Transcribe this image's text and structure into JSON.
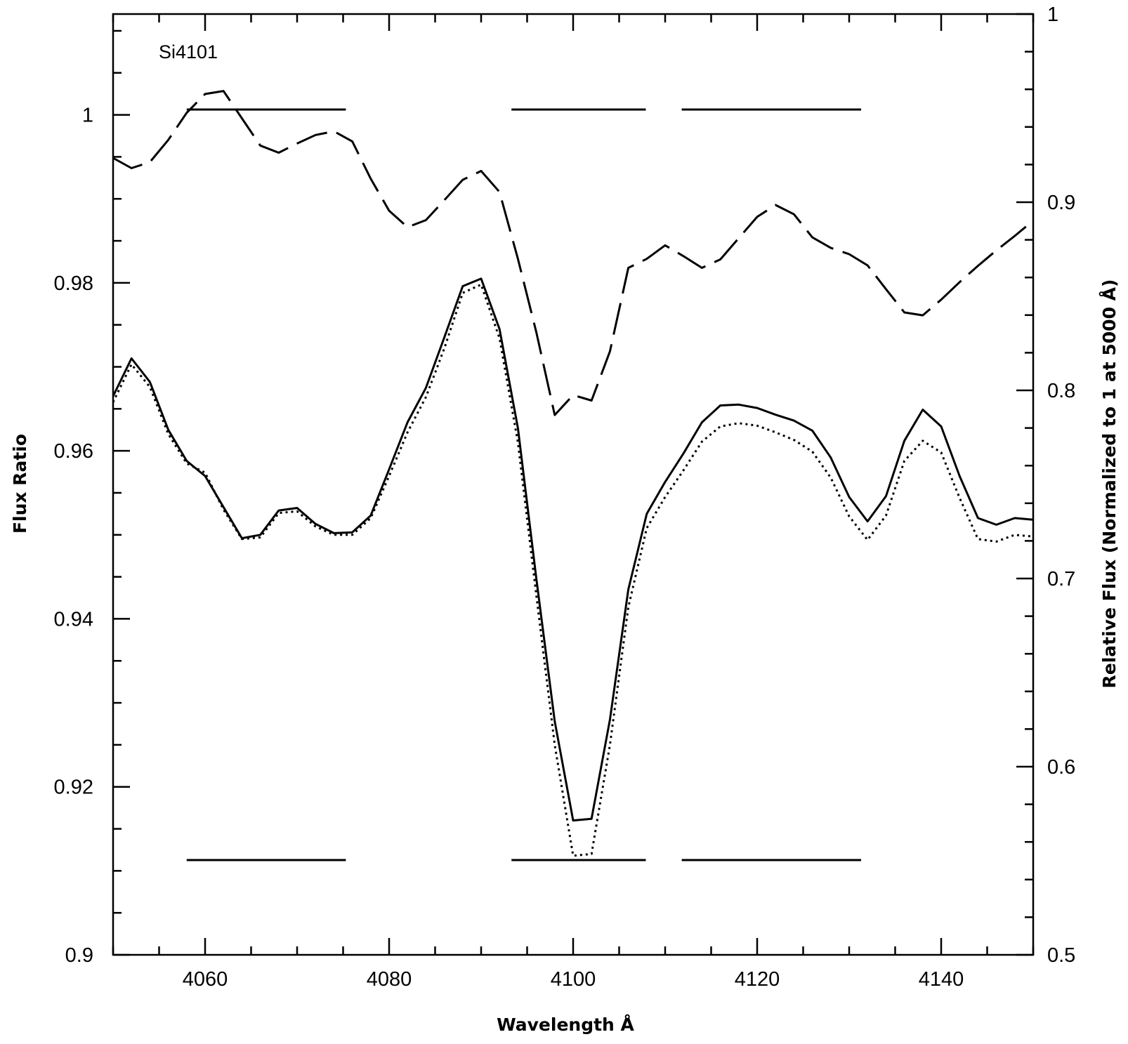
{
  "chart_data": {
    "type": "line",
    "annotation": "Si4101",
    "xlabel": "Wavelength Å",
    "ylabel_left": "Flux Ratio",
    "ylabel_right": "Relative Flux (Normalized to 1 at 5000 Å)",
    "xlim": [
      4050,
      4150
    ],
    "ylim_left": [
      0.9,
      1.012
    ],
    "ylim_right": [
      0.5,
      1.0
    ],
    "x_ticks": [
      "4060",
      "4080",
      "4100",
      "4120",
      "4140"
    ],
    "y_left_ticks": [
      "0.9",
      "0.92",
      "0.94",
      "0.96",
      "0.98",
      "1"
    ],
    "y_right_ticks": [
      "0.5",
      "0.6",
      "0.7",
      "0.8",
      "0.9",
      "1"
    ],
    "continuum_bands": [
      [
        4058,
        4075.3
      ],
      [
        4093.3,
        4107.9
      ],
      [
        4111.8,
        4131.3
      ]
    ],
    "series": [
      {
        "style": "solid",
        "axis": "left",
        "x": [
          4050,
          4052,
          4054,
          4056,
          4058,
          4060,
          4062,
          4064,
          4066,
          4068,
          4070,
          4072,
          4074,
          4076,
          4078,
          4080,
          4082,
          4084,
          4086,
          4088,
          4090,
          4092,
          4094,
          4096,
          4098,
          4100,
          4102,
          4104,
          4106,
          4108,
          4110,
          4112,
          4114,
          4116,
          4118,
          4120,
          4122,
          4124,
          4126,
          4128,
          4130,
          4132,
          4134,
          4136,
          4138,
          4140,
          4142,
          4144,
          4146,
          4148,
          4150
        ],
        "y": [
          0.9665,
          0.971,
          0.9682,
          0.9625,
          0.9588,
          0.957,
          0.9533,
          0.9496,
          0.95,
          0.9529,
          0.9532,
          0.9513,
          0.9502,
          0.9503,
          0.9523,
          0.9578,
          0.9634,
          0.9675,
          0.9735,
          0.9796,
          0.9805,
          0.9745,
          0.9627,
          0.9448,
          0.9278,
          0.916,
          0.9162,
          0.928,
          0.9435,
          0.9525,
          0.9563,
          0.9597,
          0.9634,
          0.9654,
          0.9655,
          0.9651,
          0.9643,
          0.9636,
          0.9624,
          0.9592,
          0.9545,
          0.9516,
          0.9546,
          0.9612,
          0.9649,
          0.9629,
          0.957,
          0.952,
          0.9512,
          0.952,
          0.9518
        ]
      },
      {
        "style": "dotted",
        "axis": "left",
        "x": [
          4050,
          4052,
          4054,
          4056,
          4058,
          4060,
          4062,
          4064,
          4066,
          4068,
          4070,
          4072,
          4074,
          4076,
          4078,
          4080,
          4082,
          4084,
          4086,
          4088,
          4090,
          4092,
          4094,
          4096,
          4098,
          4100,
          4102,
          4104,
          4106,
          4108,
          4110,
          4112,
          4114,
          4116,
          4118,
          4120,
          4122,
          4124,
          4126,
          4128,
          4130,
          4132,
          4134,
          4136,
          4138,
          4140,
          4142,
          4144,
          4146,
          4148,
          4150
        ],
        "y": [
          0.9658,
          0.9703,
          0.9676,
          0.962,
          0.9585,
          0.9574,
          0.953,
          0.9495,
          0.9497,
          0.9526,
          0.9528,
          0.951,
          0.95,
          0.95,
          0.952,
          0.957,
          0.9622,
          0.9664,
          0.9722,
          0.9788,
          0.9798,
          0.9734,
          0.961,
          0.9428,
          0.925,
          0.9118,
          0.912,
          0.925,
          0.9414,
          0.9508,
          0.9545,
          0.9577,
          0.9611,
          0.9629,
          0.9633,
          0.963,
          0.9622,
          0.9613,
          0.9599,
          0.9568,
          0.9522,
          0.9494,
          0.9523,
          0.9588,
          0.9612,
          0.9598,
          0.9544,
          0.9495,
          0.9492,
          0.95,
          0.9498
        ]
      },
      {
        "style": "dashed",
        "axis": "right",
        "x": [
          4050,
          4052,
          4054,
          4056,
          4058,
          4060,
          4062,
          4064,
          4066,
          4068,
          4070,
          4072,
          4074,
          4076,
          4078,
          4080,
          4082,
          4084,
          4086,
          4088,
          4090,
          4092,
          4094,
          4096,
          4098,
          4100,
          4102,
          4104,
          4106,
          4108,
          4110,
          4112,
          4114,
          4116,
          4118,
          4120,
          4122,
          4124,
          4126,
          4128,
          4130,
          4132,
          4134,
          4136,
          4138,
          4140,
          4142,
          4144,
          4146,
          4148,
          4150
        ],
        "y": [
          0.9235,
          0.9181,
          0.9213,
          0.9331,
          0.9475,
          0.9575,
          0.9591,
          0.9446,
          0.9301,
          0.9263,
          0.9312,
          0.9357,
          0.9377,
          0.9323,
          0.9125,
          0.8955,
          0.8867,
          0.8905,
          0.9011,
          0.9119,
          0.9166,
          0.9054,
          0.8699,
          0.8309,
          0.7869,
          0.7975,
          0.7946,
          0.8207,
          0.8651,
          0.8699,
          0.8771,
          0.8713,
          0.8651,
          0.8696,
          0.8809,
          0.8922,
          0.8985,
          0.8936,
          0.8813,
          0.8757,
          0.8724,
          0.8664,
          0.8538,
          0.8414,
          0.8399,
          0.8482,
          0.8575,
          0.8662,
          0.8744,
          0.8821,
          0.8902
        ]
      }
    ]
  }
}
